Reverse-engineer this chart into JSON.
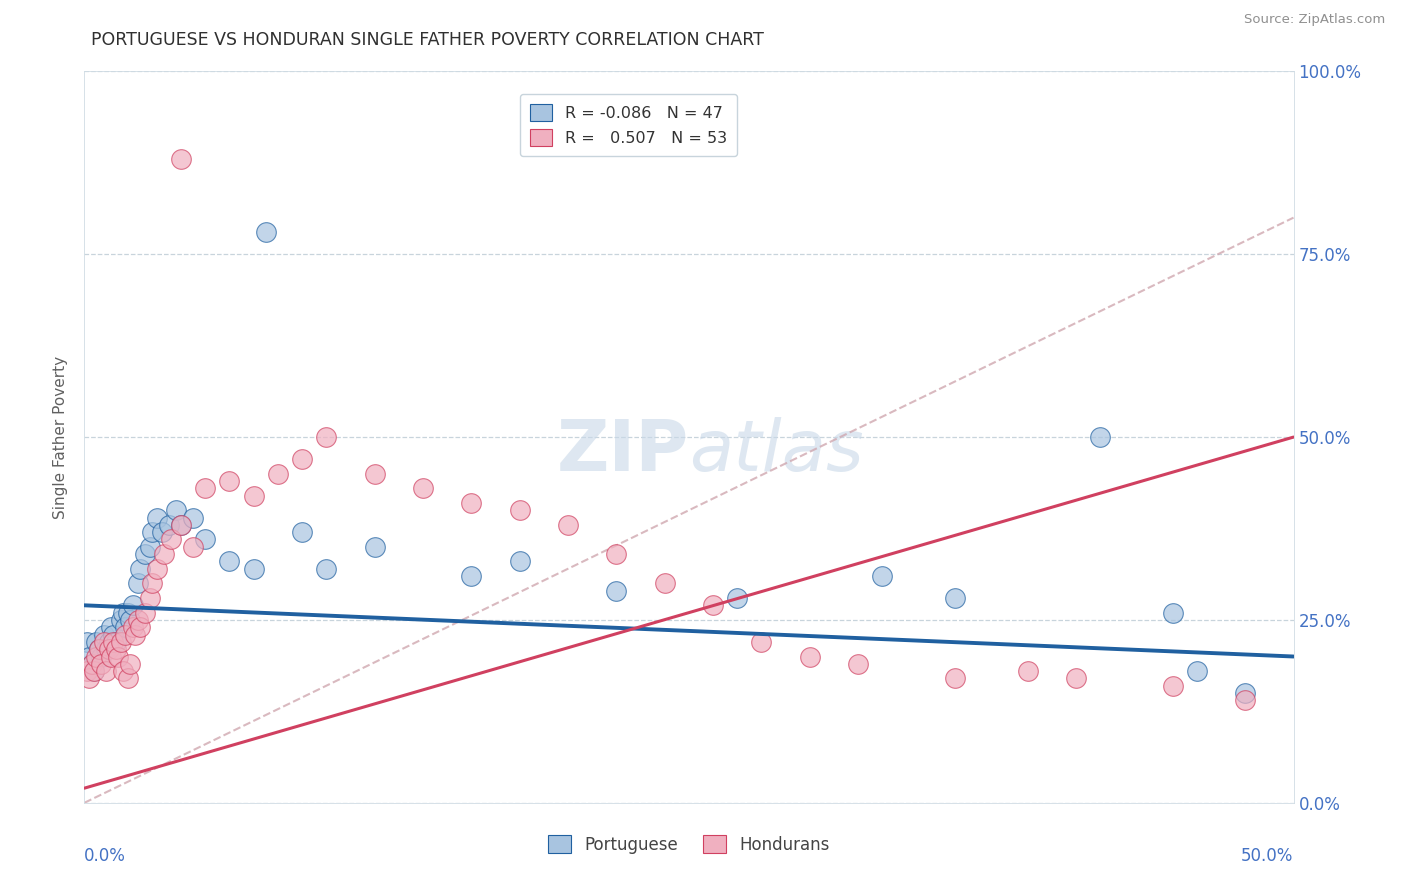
{
  "title": "PORTUGUESE VS HONDURAN SINGLE FATHER POVERTY CORRELATION CHART",
  "source": "Source: ZipAtlas.com",
  "ylabel": "Single Father Poverty",
  "ytick_vals": [
    0.0,
    0.25,
    0.5,
    0.75,
    1.0
  ],
  "ytick_labels": [
    "0.0%",
    "25.0%",
    "50.0%",
    "75.0%",
    "100.0%"
  ],
  "xtick_labels": [
    "0.0%",
    "",
    "",
    "",
    "",
    "50.0%"
  ],
  "xlim": [
    0.0,
    0.5
  ],
  "ylim": [
    0.0,
    1.0
  ],
  "blue_fill": "#a8c4e0",
  "pink_fill": "#f0b0c0",
  "blue_line": "#2060a0",
  "pink_line": "#d04060",
  "dash_line": "#d0a8b0",
  "watermark_color": "#c8d8e8",
  "grid_color": "#c8d4dc",
  "title_color": "#303030",
  "axis_label_color": "#4472c4",
  "ylabel_color": "#606060",
  "source_color": "#909090",
  "portuguese_pts": [
    [
      0.001,
      0.22
    ],
    [
      0.002,
      0.2
    ],
    [
      0.003,
      0.19
    ],
    [
      0.004,
      0.18
    ],
    [
      0.005,
      0.22
    ],
    [
      0.006,
      0.21
    ],
    [
      0.007,
      0.2
    ],
    [
      0.008,
      0.23
    ],
    [
      0.009,
      0.21
    ],
    [
      0.01,
      0.22
    ],
    [
      0.011,
      0.24
    ],
    [
      0.012,
      0.23
    ],
    [
      0.013,
      0.22
    ],
    [
      0.015,
      0.25
    ],
    [
      0.016,
      0.26
    ],
    [
      0.017,
      0.24
    ],
    [
      0.018,
      0.26
    ],
    [
      0.019,
      0.25
    ],
    [
      0.02,
      0.27
    ],
    [
      0.022,
      0.3
    ],
    [
      0.023,
      0.32
    ],
    [
      0.025,
      0.34
    ],
    [
      0.027,
      0.35
    ],
    [
      0.028,
      0.37
    ],
    [
      0.03,
      0.39
    ],
    [
      0.032,
      0.37
    ],
    [
      0.035,
      0.38
    ],
    [
      0.038,
      0.4
    ],
    [
      0.04,
      0.38
    ],
    [
      0.045,
      0.39
    ],
    [
      0.05,
      0.36
    ],
    [
      0.06,
      0.33
    ],
    [
      0.07,
      0.32
    ],
    [
      0.075,
      0.78
    ],
    [
      0.09,
      0.37
    ],
    [
      0.1,
      0.32
    ],
    [
      0.12,
      0.35
    ],
    [
      0.16,
      0.31
    ],
    [
      0.18,
      0.33
    ],
    [
      0.22,
      0.29
    ],
    [
      0.27,
      0.28
    ],
    [
      0.33,
      0.31
    ],
    [
      0.36,
      0.28
    ],
    [
      0.42,
      0.5
    ],
    [
      0.45,
      0.26
    ],
    [
      0.46,
      0.18
    ],
    [
      0.48,
      0.15
    ]
  ],
  "honduran_pts": [
    [
      0.001,
      0.18
    ],
    [
      0.002,
      0.17
    ],
    [
      0.003,
      0.19
    ],
    [
      0.004,
      0.18
    ],
    [
      0.005,
      0.2
    ],
    [
      0.006,
      0.21
    ],
    [
      0.007,
      0.19
    ],
    [
      0.008,
      0.22
    ],
    [
      0.009,
      0.18
    ],
    [
      0.01,
      0.21
    ],
    [
      0.011,
      0.2
    ],
    [
      0.012,
      0.22
    ],
    [
      0.013,
      0.21
    ],
    [
      0.014,
      0.2
    ],
    [
      0.015,
      0.22
    ],
    [
      0.016,
      0.18
    ],
    [
      0.017,
      0.23
    ],
    [
      0.018,
      0.17
    ],
    [
      0.019,
      0.19
    ],
    [
      0.02,
      0.24
    ],
    [
      0.021,
      0.23
    ],
    [
      0.022,
      0.25
    ],
    [
      0.023,
      0.24
    ],
    [
      0.025,
      0.26
    ],
    [
      0.027,
      0.28
    ],
    [
      0.028,
      0.3
    ],
    [
      0.03,
      0.32
    ],
    [
      0.033,
      0.34
    ],
    [
      0.036,
      0.36
    ],
    [
      0.04,
      0.38
    ],
    [
      0.045,
      0.35
    ],
    [
      0.05,
      0.43
    ],
    [
      0.06,
      0.44
    ],
    [
      0.07,
      0.42
    ],
    [
      0.08,
      0.45
    ],
    [
      0.09,
      0.47
    ],
    [
      0.1,
      0.5
    ],
    [
      0.04,
      0.88
    ],
    [
      0.12,
      0.45
    ],
    [
      0.14,
      0.43
    ],
    [
      0.16,
      0.41
    ],
    [
      0.18,
      0.4
    ],
    [
      0.2,
      0.38
    ],
    [
      0.22,
      0.34
    ],
    [
      0.24,
      0.3
    ],
    [
      0.26,
      0.27
    ],
    [
      0.28,
      0.22
    ],
    [
      0.3,
      0.2
    ],
    [
      0.32,
      0.19
    ],
    [
      0.36,
      0.17
    ],
    [
      0.39,
      0.18
    ],
    [
      0.41,
      0.17
    ],
    [
      0.45,
      0.16
    ],
    [
      0.48,
      0.14
    ]
  ],
  "blue_line_pts": [
    0.0,
    0.27,
    0.5,
    0.2
  ],
  "pink_line_pts": [
    0.0,
    0.02,
    0.5,
    0.5
  ],
  "dash_line_pts": [
    0.0,
    0.0,
    0.5,
    0.8
  ]
}
